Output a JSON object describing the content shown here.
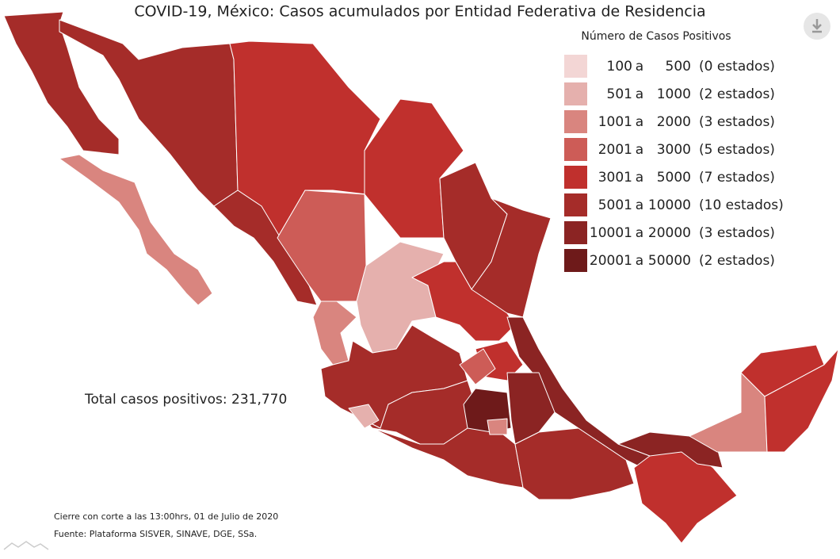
{
  "title": "COVID-19, México: Casos acumulados por Entidad Federativa de Residencia",
  "legend": {
    "title": "Número de Casos Positivos",
    "connector": "a",
    "items": [
      {
        "from": "100",
        "to": "500",
        "count": "(0 estados)",
        "color": "#f3d6d5"
      },
      {
        "from": "501",
        "to": "1000",
        "count": "(2 estados)",
        "color": "#e5b0ad"
      },
      {
        "from": "1001",
        "to": "2000",
        "count": "(3 estados)",
        "color": "#d9857f"
      },
      {
        "from": "2001",
        "to": "3000",
        "count": "(5 estados)",
        "color": "#cd5c57"
      },
      {
        "from": "3001",
        "to": "5000",
        "count": "(7 estados)",
        "color": "#c0302d"
      },
      {
        "from": "5001",
        "to": "10000",
        "count": "(10 estados)",
        "color": "#a52c29"
      },
      {
        "from": "10001",
        "to": "20000",
        "count": "(3 estados)",
        "color": "#8b2423"
      },
      {
        "from": "20001",
        "to": "50000",
        "count": "(2 estados)",
        "color": "#6e1a1a"
      }
    ]
  },
  "total": "Total casos positivos: 231,770",
  "footer": [
    "Cierre con corte a las 13:00hrs, 01 de Julio de 2020",
    "Fuente: Plataforma SISVER, SINAVE, DGE, SSa."
  ]
}
